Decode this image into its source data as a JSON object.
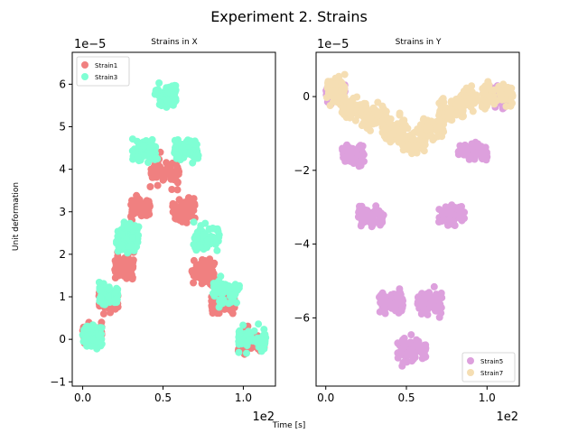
{
  "figure": {
    "suptitle": "Experiment 2. Strains",
    "xlabel": "Time [s]",
    "ylabel": "Unit deformation"
  },
  "chart_data": [
    {
      "type": "scatter",
      "title": "Strains in X",
      "xlabel": "",
      "ylabel": "",
      "x_offset_text": "1e2",
      "y_offset_text": "1e−5",
      "xlim": [
        -0.065,
        1.2
      ],
      "ylim": [
        -1.1,
        6.75
      ],
      "xticks": [
        0.0,
        0.5,
        1.0
      ],
      "xtick_labels": [
        "0.0",
        "0.5",
        "1.0"
      ],
      "yticks": [
        -1,
        0,
        1,
        2,
        3,
        4,
        5,
        6
      ],
      "ytick_labels": [
        "−1",
        "0",
        "1",
        "2",
        "3",
        "4",
        "5",
        "6"
      ],
      "legend_position": "upper-left",
      "series": [
        {
          "name": "Strain1",
          "color": "#f08080",
          "clusters": [
            {
              "x": [
                0.0,
                0.12
              ],
              "y": [
                -0.4,
                0.6
              ]
            },
            {
              "x": [
                0.1,
                0.22
              ],
              "y": [
                0.4,
                1.4
              ]
            },
            {
              "x": [
                0.2,
                0.32
              ],
              "y": [
                1.2,
                2.3
              ]
            },
            {
              "x": [
                0.3,
                0.42
              ],
              "y": [
                2.6,
                3.6
              ]
            },
            {
              "x": [
                0.42,
                0.6
              ],
              "y": [
                3.3,
                4.6
              ]
            },
            {
              "x": [
                0.56,
                0.7
              ],
              "y": [
                2.5,
                3.6
              ]
            },
            {
              "x": [
                0.68,
                0.82
              ],
              "y": [
                1.0,
                2.1
              ]
            },
            {
              "x": [
                0.8,
                0.95
              ],
              "y": [
                0.3,
                1.3
              ]
            },
            {
              "x": [
                0.96,
                1.13
              ],
              "y": [
                -0.6,
                0.5
              ]
            }
          ]
        },
        {
          "name": "Strain3",
          "color": "#7fffd4",
          "clusters": [
            {
              "x": [
                0.0,
                0.12
              ],
              "y": [
                -0.4,
                0.5
              ]
            },
            {
              "x": [
                0.1,
                0.22
              ],
              "y": [
                0.6,
                1.5
              ]
            },
            {
              "x": [
                0.21,
                0.35
              ],
              "y": [
                1.8,
                3.0
              ]
            },
            {
              "x": [
                0.31,
                0.47
              ],
              "y": [
                3.9,
                5.0
              ]
            },
            {
              "x": [
                0.45,
                0.58
              ],
              "y": [
                5.2,
                6.3
              ]
            },
            {
              "x": [
                0.57,
                0.72
              ],
              "y": [
                3.9,
                5.0
              ]
            },
            {
              "x": [
                0.69,
                0.85
              ],
              "y": [
                1.8,
                3.0
              ]
            },
            {
              "x": [
                0.81,
                0.98
              ],
              "y": [
                0.6,
                1.6
              ]
            },
            {
              "x": [
                0.97,
                1.14
              ],
              "y": [
                -0.5,
                0.5
              ]
            }
          ]
        }
      ]
    },
    {
      "type": "scatter",
      "title": "Strains in Y",
      "xlabel": "",
      "ylabel": "",
      "x_offset_text": "1e2",
      "y_offset_text": "1e−5",
      "xlim": [
        -0.06,
        1.2
      ],
      "ylim": [
        -7.85,
        1.2
      ],
      "xticks": [
        0.0,
        0.5,
        1.0
      ],
      "xtick_labels": [
        "0.0",
        "0.5",
        "1.0"
      ],
      "yticks": [
        -6,
        -4,
        -2,
        0
      ],
      "ytick_labels": [
        "−6",
        "−4",
        "−2",
        "0"
      ],
      "legend_position": "lower-right",
      "series": [
        {
          "name": "Strain5",
          "color": "#dda0dd",
          "clusters": [
            {
              "x": [
                0.0,
                0.12
              ],
              "y": [
                -0.4,
                0.6
              ]
            },
            {
              "x": [
                0.1,
                0.24
              ],
              "y": [
                -2.1,
                -1.0
              ]
            },
            {
              "x": [
                0.2,
                0.36
              ],
              "y": [
                -3.8,
                -2.7
              ]
            },
            {
              "x": [
                0.33,
                0.48
              ],
              "y": [
                -6.2,
                -5.0
              ]
            },
            {
              "x": [
                0.44,
                0.62
              ],
              "y": [
                -7.5,
                -6.3
              ]
            },
            {
              "x": [
                0.57,
                0.72
              ],
              "y": [
                -6.2,
                -5.0
              ]
            },
            {
              "x": [
                0.7,
                0.86
              ],
              "y": [
                -3.7,
                -2.7
              ]
            },
            {
              "x": [
                0.82,
                1.0
              ],
              "y": [
                -2.0,
                -1.0
              ]
            },
            {
              "x": [
                0.97,
                1.16
              ],
              "y": [
                -0.5,
                0.5
              ]
            }
          ]
        },
        {
          "name": "Strain7",
          "color": "#f5deb3",
          "clusters": [
            {
              "x": [
                0.0,
                0.12
              ],
              "y": [
                -0.6,
                0.9
              ]
            },
            {
              "x": [
                0.1,
                0.25
              ],
              "y": [
                -0.9,
                0.3
              ]
            },
            {
              "x": [
                0.22,
                0.38
              ],
              "y": [
                -1.1,
                0.0
              ]
            },
            {
              "x": [
                0.35,
                0.5
              ],
              "y": [
                -1.5,
                -0.3
              ]
            },
            {
              "x": [
                0.45,
                0.62
              ],
              "y": [
                -1.8,
                -0.6
              ]
            },
            {
              "x": [
                0.58,
                0.74
              ],
              "y": [
                -1.5,
                -0.2
              ]
            },
            {
              "x": [
                0.7,
                0.86
              ],
              "y": [
                -1.0,
                0.2
              ]
            },
            {
              "x": [
                0.82,
                1.0
              ],
              "y": [
                -0.7,
                0.5
              ]
            },
            {
              "x": [
                0.97,
                1.16
              ],
              "y": [
                -0.5,
                0.6
              ]
            }
          ]
        }
      ]
    }
  ]
}
